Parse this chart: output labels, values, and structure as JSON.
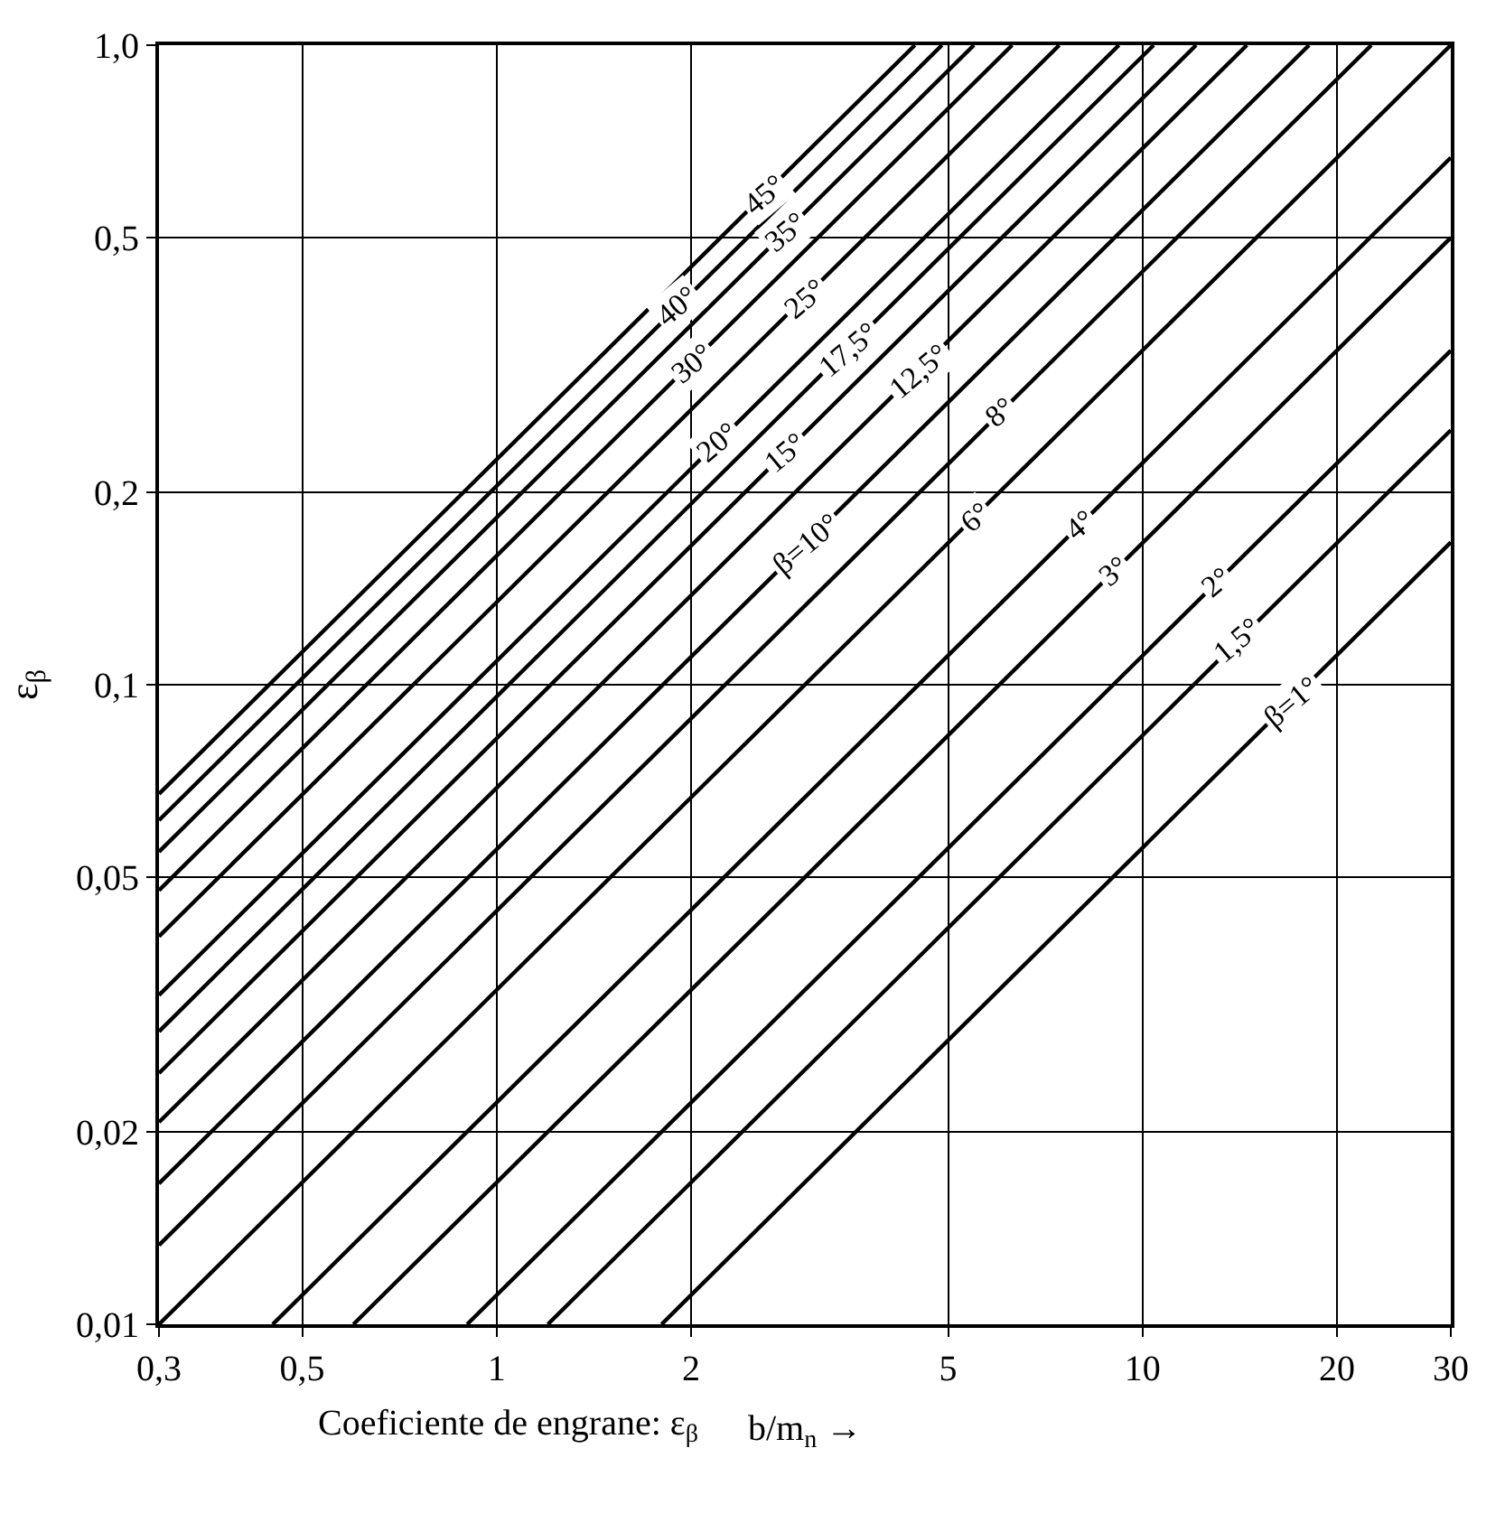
{
  "chart_data": {
    "type": "line",
    "ylabel": "ε$_{β}$",
    "xlabel": "b/m$_{n}$ →",
    "log": "xy",
    "grid": true,
    "marker": "none",
    "line_style": "solid",
    "xlim": [
      0.3,
      30
    ],
    "ylim": [
      0.01,
      1
    ],
    "xticks": [
      {
        "value": 0.3,
        "label": "0,3"
      },
      {
        "value": 0.5,
        "label": "0,5"
      },
      1,
      2,
      5,
      10,
      20,
      30
    ],
    "yticks": [
      {
        "value": 0.01,
        "label": "0,01"
      },
      {
        "value": 0.02,
        "label": "0,02"
      },
      {
        "value": 0.05,
        "label": "0,05"
      },
      {
        "value": 0.1,
        "label": "0,1"
      },
      {
        "value": 0.2,
        "label": "0,2"
      },
      {
        "value": 0.5,
        "label": "0,5"
      },
      {
        "value": 1,
        "label": "1,0"
      }
    ],
    "series": [
      {
        "color": "#000000",
        "x": [
          1.8,
          30
        ],
        "values": [
          0.01,
          0.167
        ]
      },
      {
        "color": "#000000",
        "x": [
          1.2,
          30
        ],
        "values": [
          0.01,
          0.25
        ]
      },
      {
        "color": "#000000",
        "x": [
          0.9,
          30
        ],
        "values": [
          0.01,
          0.333
        ]
      },
      {
        "color": "#000000",
        "x": [
          0.6,
          30
        ],
        "values": [
          0.01,
          0.5
        ]
      },
      {
        "color": "#000000",
        "x": [
          0.45,
          30
        ],
        "values": [
          0.01,
          0.667
        ]
      },
      {
        "color": "#000000",
        "x": [
          0.3,
          30
        ],
        "values": [
          0.01,
          1
        ]
      },
      {
        "color": "#000000",
        "x": [
          0.3,
          22.6
        ],
        "values": [
          0.0133,
          1
        ]
      },
      {
        "color": "#000000",
        "x": [
          0.3,
          18.1
        ],
        "values": [
          0.0166,
          1
        ]
      },
      {
        "color": "#000000",
        "x": [
          0.3,
          14.5
        ],
        "values": [
          0.0207,
          1
        ]
      },
      {
        "color": "#000000",
        "x": [
          0.3,
          12.1
        ],
        "values": [
          0.0247,
          1
        ]
      },
      {
        "color": "#000000",
        "x": [
          0.3,
          10.4
        ],
        "values": [
          0.0287,
          1
        ]
      },
      {
        "color": "#000000",
        "x": [
          0.3,
          9.19
        ],
        "values": [
          0.0327,
          1
        ]
      },
      {
        "color": "#000000",
        "x": [
          0.3,
          7.43
        ],
        "values": [
          0.0404,
          1
        ]
      },
      {
        "color": "#000000",
        "x": [
          0.3,
          6.28
        ],
        "values": [
          0.0477,
          1
        ]
      },
      {
        "color": "#000000",
        "x": [
          0.3,
          5.48
        ],
        "values": [
          0.0548,
          1
        ]
      },
      {
        "color": "#000000",
        "x": [
          0.3,
          4.89
        ],
        "values": [
          0.0614,
          1
        ]
      },
      {
        "color": "#000000",
        "x": [
          0.3,
          4.44
        ],
        "values": [
          0.0675,
          1
        ]
      }
    ],
    "annotations": [
      {
        "text": "β=1°",
        "x": 17,
        "y": 0.094
      },
      {
        "text": "1,5°",
        "x": 14,
        "y": 0.117
      },
      {
        "text": "2°",
        "x": 13,
        "y": 0.144
      },
      {
        "text": "3°",
        "x": 9,
        "y": 0.15
      },
      {
        "text": "4°",
        "x": 8,
        "y": 0.178
      },
      {
        "text": "6°",
        "x": 5.5,
        "y": 0.183
      },
      {
        "text": "8°",
        "x": 6,
        "y": 0.266
      },
      {
        "text": "β=10°",
        "x": 3,
        "y": 0.166
      },
      {
        "text": "12,5°",
        "x": 4.5,
        "y": 0.31
      },
      {
        "text": "15°",
        "x": 2.8,
        "y": 0.23
      },
      {
        "text": "17,5°",
        "x": 3.5,
        "y": 0.335
      },
      {
        "text": "20°",
        "x": 2.2,
        "y": 0.24
      },
      {
        "text": "25°",
        "x": 3,
        "y": 0.4
      },
      {
        "text": "30°",
        "x": 2,
        "y": 0.318
      },
      {
        "text": "35°",
        "x": 2.8,
        "y": 0.51
      },
      {
        "text": "40°",
        "x": 1.9,
        "y": 0.39
      },
      {
        "text": "45°",
        "x": 2.6,
        "y": 0.585
      },
      "Coeficiente de engrane: ε$_{β}$"
    ]
  }
}
